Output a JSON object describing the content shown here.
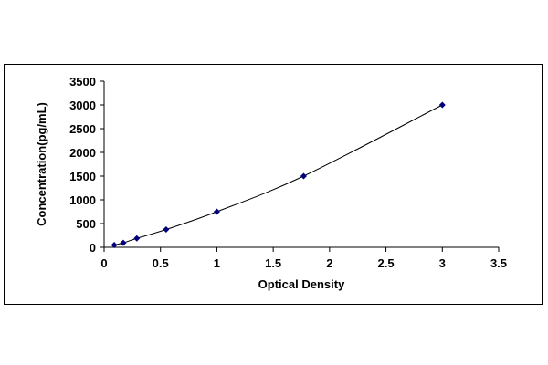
{
  "chart_data": {
    "type": "scatter",
    "title": "",
    "xlabel": "Optical Density",
    "ylabel": "Concentration(pg/mL)",
    "xlim": [
      0,
      3.5
    ],
    "ylim": [
      0,
      3500
    ],
    "x_ticks": [
      "0",
      "0.5",
      "1",
      "1.5",
      "2",
      "2.5",
      "3",
      "3.5"
    ],
    "y_ticks": [
      "0",
      "500",
      "1000",
      "1500",
      "2000",
      "2500",
      "3000",
      "3500"
    ],
    "grid": false,
    "legend": "none",
    "trendline": "smooth curve",
    "marker": "diamond",
    "color": "#000080",
    "series": [
      {
        "points": [
          {
            "x": 0.09,
            "y": 47
          },
          {
            "x": 0.17,
            "y": 94
          },
          {
            "x": 0.29,
            "y": 188
          },
          {
            "x": 0.55,
            "y": 375
          },
          {
            "x": 1.0,
            "y": 750
          },
          {
            "x": 1.77,
            "y": 1500
          },
          {
            "x": 3.0,
            "y": 3000
          }
        ]
      }
    ]
  }
}
